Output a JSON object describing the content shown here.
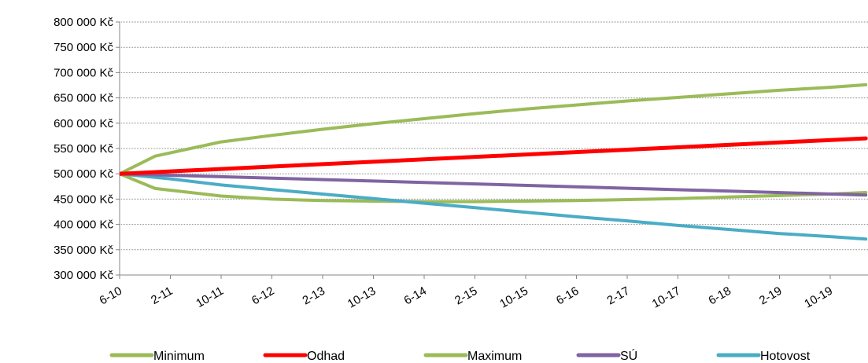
{
  "chart_data": {
    "type": "line",
    "title": "",
    "xlabel": "",
    "ylabel": "",
    "ylim": [
      300000,
      800000
    ],
    "y_ticks": [
      300000,
      350000,
      400000,
      450000,
      500000,
      550000,
      600000,
      650000,
      700000,
      750000,
      800000
    ],
    "y_tick_labels": [
      "300 000 Kč",
      "350 000 Kč",
      "400 000 Kč",
      "450 000 Kč",
      "500 000 Kč",
      "550 000 Kč",
      "600 000 Kč",
      "650 000 Kč",
      "700 000 Kč",
      "750 000 Kč",
      "800 000 Kč"
    ],
    "x_tick_labels": [
      "6-10",
      "2-11",
      "10-11",
      "6-12",
      "2-13",
      "10-13",
      "6-14",
      "2-15",
      "10-15",
      "6-16",
      "2-17",
      "10-17",
      "6-18",
      "2-19",
      "10-19"
    ],
    "x_range": [
      0,
      14.7
    ],
    "grid": "horizontal",
    "legend_position": "bottom",
    "series": [
      {
        "name": "Minimum",
        "color": "#9bbb59",
        "x": [
          0,
          0.7,
          2,
          3,
          4,
          5,
          6,
          7,
          8,
          9,
          10,
          11,
          12,
          13,
          14,
          14.7
        ],
        "y": [
          500000,
          471000,
          456000,
          450000,
          447000,
          446000,
          445000,
          445000,
          446000,
          447000,
          449000,
          451000,
          454000,
          457000,
          460000,
          463000
        ]
      },
      {
        "name": "Odhad",
        "color": "#ff0000",
        "x": [
          0,
          14.7
        ],
        "y": [
          500000,
          570000
        ]
      },
      {
        "name": "Maximum",
        "color": "#9bbb59",
        "x": [
          0,
          0.7,
          2,
          3,
          4,
          5,
          6,
          7,
          8,
          9,
          10,
          11,
          12,
          13,
          14,
          14.7
        ],
        "y": [
          500000,
          535000,
          563000,
          576000,
          588000,
          599000,
          609000,
          619000,
          628000,
          636000,
          644000,
          651000,
          658000,
          665000,
          671000,
          676000
        ]
      },
      {
        "name": "SÚ",
        "color": "#8064a2",
        "x": [
          0,
          14.7
        ],
        "y": [
          500000,
          458000
        ]
      },
      {
        "name": "Hotovost",
        "color": "#4bacc6",
        "x": [
          0,
          1,
          2,
          3,
          4,
          5,
          6,
          7,
          8,
          9,
          10,
          11,
          12,
          13,
          14,
          14.7
        ],
        "y": [
          500000,
          490000,
          478000,
          469000,
          460000,
          451000,
          442000,
          433000,
          424000,
          415000,
          407000,
          398000,
          390000,
          382000,
          376000,
          371000
        ]
      }
    ]
  }
}
